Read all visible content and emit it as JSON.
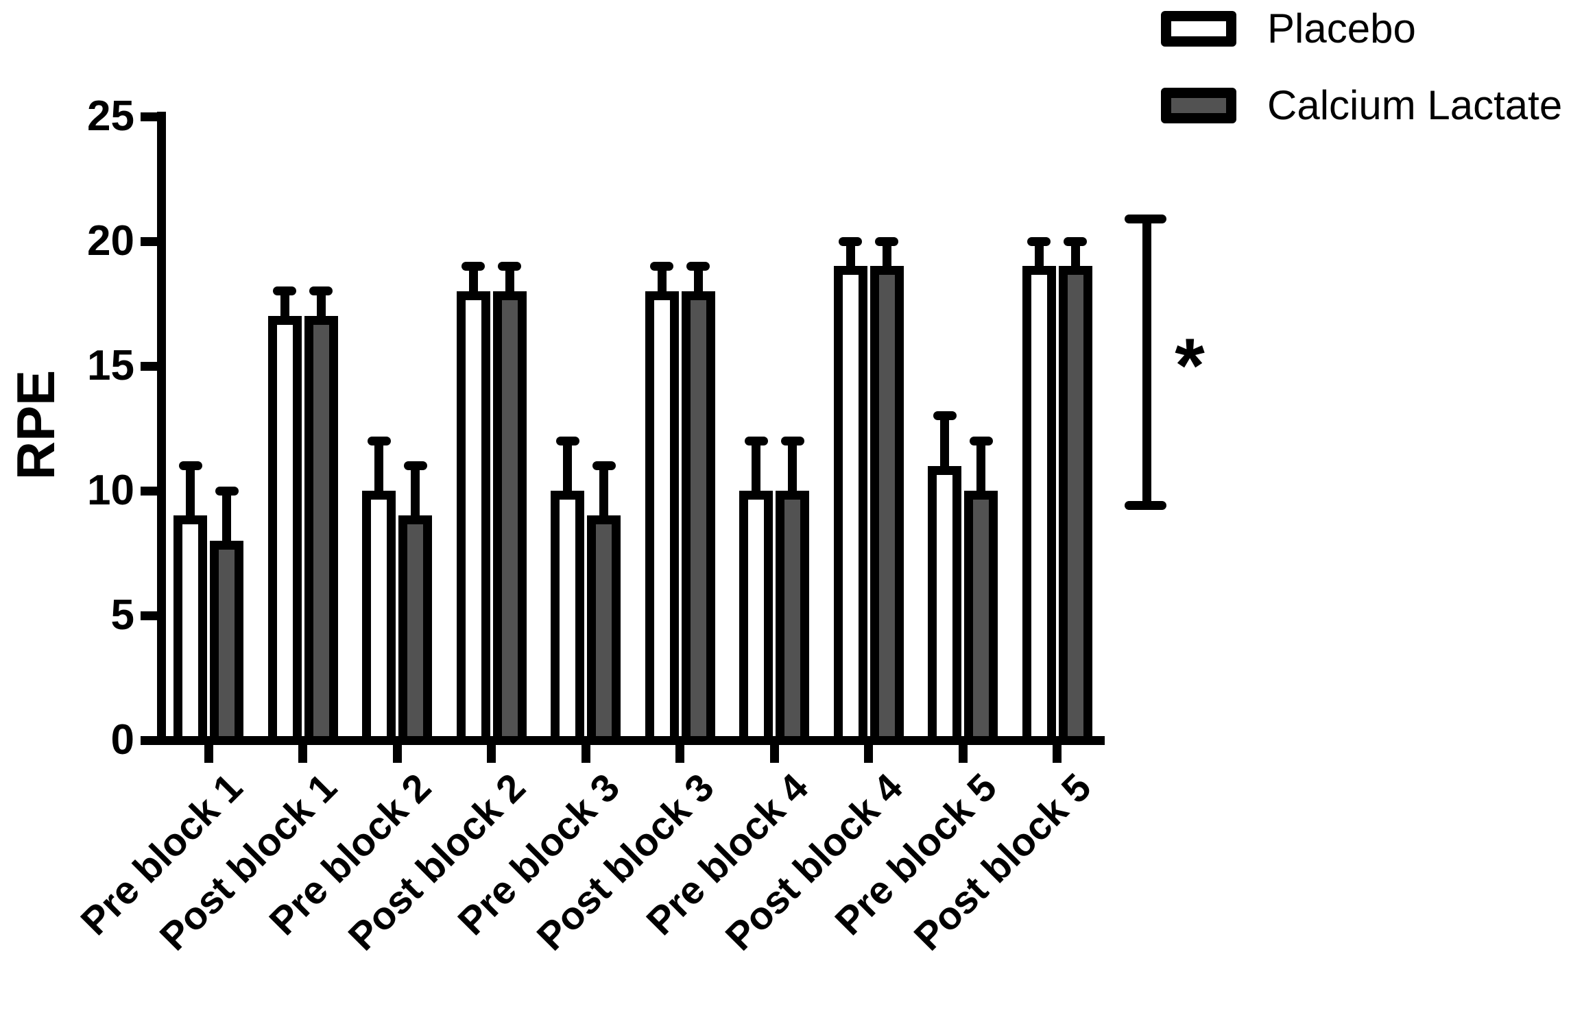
{
  "figure": {
    "ylabel": "RPE",
    "legend": [
      {
        "label": "Placebo",
        "fill": "#ffffff"
      },
      {
        "label": "Calcium Lactate",
        "fill": "#525252"
      }
    ]
  },
  "chart_data": {
    "type": "bar",
    "title": "",
    "xlabel": "",
    "ylabel": "RPE",
    "ylim": [
      0,
      25
    ],
    "yticks": [
      0,
      5,
      10,
      15,
      20,
      25
    ],
    "grid": false,
    "legend_position": "top-right",
    "categories": [
      "Pre block 1",
      "Post block 1",
      "Pre block 2",
      "Post block 2",
      "Pre block 3",
      "Post block 3",
      "Pre block 4",
      "Post block 4",
      "Pre block 5",
      "Post block 5"
    ],
    "series": [
      {
        "name": "Placebo",
        "fill": "#ffffff",
        "values": [
          9,
          17,
          10,
          18,
          10,
          18,
          10,
          19,
          11,
          19
        ],
        "error_top": [
          11,
          18,
          12,
          19,
          12,
          19,
          12,
          20,
          13,
          20
        ]
      },
      {
        "name": "Calcium Lactate",
        "fill": "#525252",
        "values": [
          8,
          17,
          9,
          18,
          9,
          18,
          10,
          19,
          10,
          19
        ],
        "error_top": [
          10,
          18,
          11,
          19,
          11,
          19,
          12,
          20,
          12,
          20
        ]
      }
    ],
    "significance_bracket": {
      "from_value": 9.4,
      "to_value": 20.9,
      "symbol": "*"
    }
  }
}
